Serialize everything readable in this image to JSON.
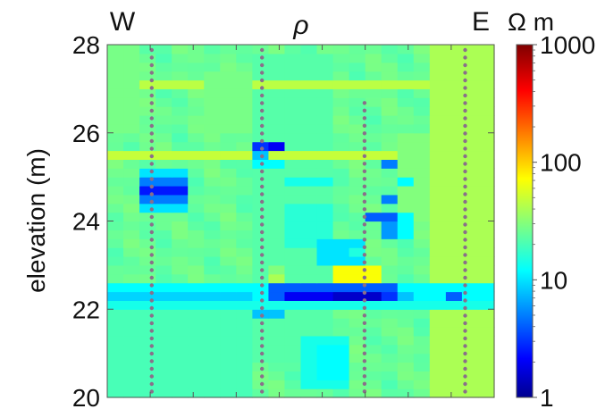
{
  "chart_data": {
    "type": "heatmap",
    "title": "ρ",
    "ylabel": "elevation (m)",
    "xlabel": "",
    "ylim": [
      20,
      28
    ],
    "y_ticks": [
      "20",
      "22",
      "24",
      "26",
      "28"
    ],
    "side_labels": {
      "left": "W",
      "right": "E"
    },
    "colorbar": {
      "scale": "log",
      "range": [
        1,
        1000
      ],
      "unit": "Ω m",
      "ticks": [
        "1",
        "10",
        "100",
        "1000"
      ]
    },
    "cells": {
      "columns": 24,
      "rows": 40,
      "background_value": 25,
      "anomalies": [
        {
          "c0": 9,
          "c1": 14,
          "r0": 4,
          "r1": 39,
          "v": 22,
          "note": "central slightly lower band"
        },
        {
          "c0": 0,
          "c1": 24,
          "r0": 35,
          "r1": 36,
          "v": 45,
          "note": "upper greenish layer"
        },
        {
          "c0": 0,
          "c1": 24,
          "r0": 27,
          "r1": 28,
          "v": 48,
          "note": "upper greenish layer"
        },
        {
          "c0": 18,
          "c1": 21,
          "r0": 20,
          "r1": 30,
          "v": 30
        },
        {
          "c0": 20,
          "c1": 24,
          "r0": 0,
          "r1": 40,
          "v": 40,
          "note": "east edge yellowish"
        },
        {
          "c0": 2,
          "c1": 5,
          "r0": 21,
          "r1": 26,
          "v": 10
        },
        {
          "c0": 2,
          "c1": 5,
          "r0": 22,
          "r1": 25,
          "v": 5,
          "note": "W conductor"
        },
        {
          "c0": 2,
          "c1": 5,
          "r0": 23,
          "r1": 24,
          "v": 2.5
        },
        {
          "c0": 9,
          "c1": 11,
          "r0": 28,
          "r1": 29,
          "v": 3
        },
        {
          "c0": 10,
          "c1": 11,
          "r0": 28,
          "r1": 29,
          "v": 2
        },
        {
          "c0": 9,
          "c1": 10,
          "r0": 27,
          "r1": 28,
          "v": 8
        },
        {
          "c0": 9,
          "c1": 11,
          "r0": 26,
          "r1": 27,
          "v": 12
        },
        {
          "c0": 11,
          "c1": 14,
          "r0": 24,
          "r1": 25,
          "v": 14
        },
        {
          "c0": 11,
          "c1": 14,
          "r0": 17,
          "r1": 22,
          "v": 16
        },
        {
          "c0": 13,
          "c1": 16,
          "r0": 15,
          "r1": 18,
          "v": 10
        },
        {
          "c0": 14,
          "c1": 17,
          "r0": 13,
          "r1": 15,
          "v": 70,
          "note": "yellowish lens"
        },
        {
          "c0": 17,
          "c1": 18,
          "r0": 22,
          "r1": 23,
          "v": 5
        },
        {
          "c0": 17,
          "c1": 18,
          "r0": 26,
          "r1": 27,
          "v": 5
        },
        {
          "c0": 18,
          "c1": 19,
          "r0": 18,
          "r1": 21,
          "v": 12
        },
        {
          "c0": 17,
          "c1": 18,
          "r0": 18,
          "r1": 20,
          "v": 6
        },
        {
          "c0": 16,
          "c1": 18,
          "r0": 20,
          "r1": 21,
          "v": 4
        },
        {
          "c0": 15,
          "c1": 16,
          "r0": 16,
          "r1": 17,
          "v": 15
        },
        {
          "c0": 18,
          "c1": 19,
          "r0": 24,
          "r1": 25,
          "v": 12
        },
        {
          "c0": 0,
          "c1": 24,
          "r0": 11,
          "r1": 13,
          "v": 12,
          "note": "low-resistivity layer"
        },
        {
          "c0": 0,
          "c1": 24,
          "r0": 10,
          "r1": 11,
          "v": 14
        },
        {
          "c0": 0,
          "c1": 9,
          "r0": 11,
          "r1": 12,
          "v": 9
        },
        {
          "c0": 10,
          "c1": 18,
          "r0": 11,
          "r1": 13,
          "v": 4
        },
        {
          "c0": 11,
          "c1": 18,
          "r0": 11,
          "r1": 12,
          "v": 2
        },
        {
          "c0": 14,
          "c1": 17,
          "r0": 11,
          "r1": 12,
          "v": 1.5
        },
        {
          "c0": 17,
          "c1": 18,
          "r0": 11,
          "r1": 12,
          "v": 3
        },
        {
          "c0": 18,
          "c1": 19,
          "r0": 11,
          "r1": 12,
          "v": 8
        },
        {
          "c0": 21,
          "c1": 22,
          "r0": 11,
          "r1": 12,
          "v": 4
        },
        {
          "c0": 10,
          "c1": 11,
          "r0": 13,
          "r1": 14,
          "v": 40
        },
        {
          "c0": 10,
          "c1": 11,
          "r0": 14,
          "r1": 15,
          "v": 30
        },
        {
          "c0": 9,
          "c1": 11,
          "r0": 9,
          "r1": 10,
          "v": 8
        },
        {
          "c0": 12,
          "c1": 15,
          "r0": 1,
          "r1": 7,
          "v": 14
        },
        {
          "c0": 13,
          "c1": 15,
          "r0": 2,
          "r1": 6,
          "v": 12
        },
        {
          "c0": 0,
          "c1": 9,
          "r0": 0,
          "r1": 10,
          "v": 20
        },
        {
          "c0": 0,
          "c1": 2,
          "r0": 30,
          "r1": 40,
          "v": 28
        },
        {
          "c0": 6,
          "c1": 9,
          "r0": 30,
          "r1": 37,
          "v": 28
        }
      ]
    },
    "marker_columns": [
      {
        "x_frac": 0.115,
        "y_top_frac": 0.0,
        "y_bot_frac": 1.0
      },
      {
        "x_frac": 0.4,
        "y_top_frac": 0.0,
        "y_bot_frac": 1.0
      },
      {
        "x_frac": 0.665,
        "y_top_frac": 0.15,
        "y_bot_frac": 1.0
      },
      {
        "x_frac": 0.925,
        "y_top_frac": 0.0,
        "y_bot_frac": 1.0
      }
    ]
  }
}
